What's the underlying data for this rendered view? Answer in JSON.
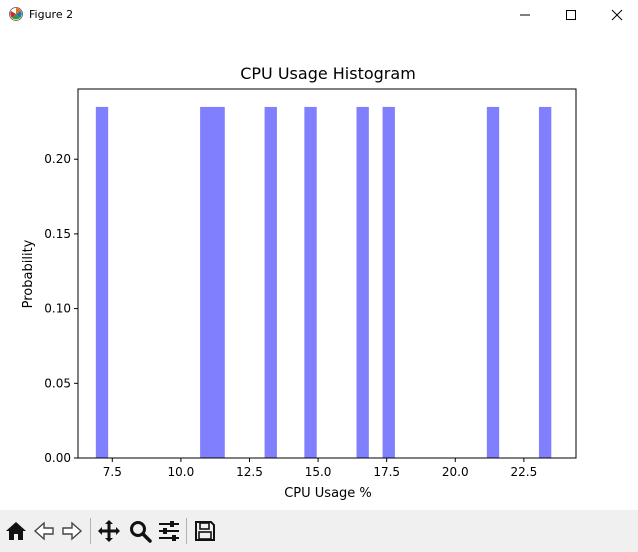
{
  "window": {
    "title": "Figure 2"
  },
  "chart_data": {
    "type": "bar",
    "title": "CPU Usage Histogram",
    "xlabel": "CPU Usage %",
    "ylabel": "Probability",
    "xlim": [
      6.25,
      24.4
    ],
    "ylim": [
      0,
      0.247
    ],
    "xticks": [
      7.5,
      10.0,
      12.5,
      15.0,
      17.5,
      20.0,
      22.5
    ],
    "xtick_labels": [
      "7.5",
      "10.0",
      "12.5",
      "15.0",
      "17.5",
      "20.0",
      "22.5"
    ],
    "yticks": [
      0.0,
      0.05,
      0.1,
      0.15,
      0.2
    ],
    "ytick_labels": [
      "0.00",
      "0.05",
      "0.10",
      "0.15",
      "0.20"
    ],
    "bar_color": "#8080ff",
    "grid": false,
    "bins": [
      {
        "x0": 6.9,
        "x1": 7.35,
        "value": 0.235
      },
      {
        "x0": 10.7,
        "x1": 11.6,
        "value": 0.235
      },
      {
        "x0": 13.05,
        "x1": 13.5,
        "value": 0.235
      },
      {
        "x0": 14.5,
        "x1": 14.95,
        "value": 0.235
      },
      {
        "x0": 16.4,
        "x1": 16.85,
        "value": 0.235
      },
      {
        "x0": 17.35,
        "x1": 17.8,
        "value": 0.235
      },
      {
        "x0": 21.15,
        "x1": 21.6,
        "value": 0.235
      },
      {
        "x0": 23.05,
        "x1": 23.5,
        "value": 0.235
      }
    ]
  },
  "toolbar": {
    "icons": [
      "home-icon",
      "back-icon",
      "forward-icon",
      "pan-icon",
      "zoom-icon",
      "configure-subplots-icon",
      "save-icon"
    ]
  }
}
